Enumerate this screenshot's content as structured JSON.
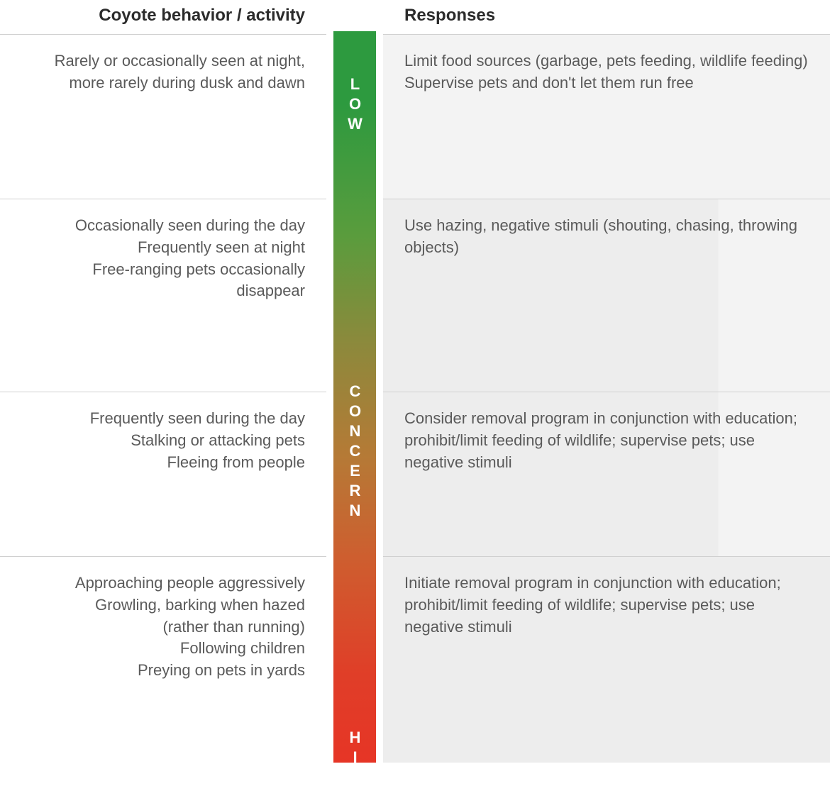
{
  "headers": {
    "left": "Coyote behavior / activity",
    "right": "Responses"
  },
  "gradient": {
    "label_low": "LOW",
    "label_concern": "CONCERN",
    "label_high": "HIGH",
    "color_start": "#2d9a3f",
    "color_mid": "#b57a36",
    "color_end": "#e63526"
  },
  "rows": [
    {
      "behavior": "Rarely or occasionally seen at night, more rarely during dusk and dawn",
      "response": "Limit food sources (garbage, pets feeding, wildlife feeding) Supervise pets and don't let them run free"
    },
    {
      "behavior": "Occasionally seen during the day\nFrequently seen at night\nFree-ranging pets occasionally disappear",
      "response": "Use hazing, negative stimuli (shouting, chasing, throwing objects)"
    },
    {
      "behavior": "Frequently seen during the day\nStalking or attacking pets\nFleeing from people",
      "response": "Consider removal program in conjunction with education; prohibit/limit feeding of wildlife; supervise pets; use negative stimuli"
    },
    {
      "behavior": "Approaching people aggressively\nGrowling, barking when hazed\n(rather than running)\nFollowing children\nPreying on pets in yards",
      "response": "Initiate removal program in conjunction with education; prohibit/limit feeding of wildlife; supervise pets; use negative stimuli"
    }
  ],
  "styling": {
    "body_font_size": 22,
    "header_font_size": 24,
    "text_color": "#5a5a5a",
    "header_color": "#2b2b2b",
    "border_color": "#d0d0d0",
    "shade_light": "#f3f3f3",
    "shade_dark": "#ededed",
    "label_font_size": 22,
    "label_color": "#ffffff"
  }
}
